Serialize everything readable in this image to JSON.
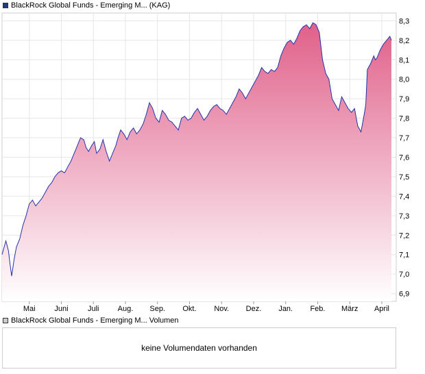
{
  "price_legend": {
    "label": "BlackRock Global Funds - Emerging M... (KAG)",
    "color": "#1f3b8c"
  },
  "volume_legend": {
    "label": "BlackRock Global Funds - Emerging M... Volumen",
    "color": "#cccccc"
  },
  "volume_message": "keine Volumendaten vorhanden",
  "colors": {
    "line": "#2233aa",
    "fill_top": "#e0608a",
    "fill_bottom": "#ffffff",
    "grid": "#cccccc"
  },
  "chart_data": {
    "type": "area",
    "title": "",
    "xlabel": "",
    "ylabel": "",
    "ylim": [
      6.86,
      8.34
    ],
    "yticks": [
      6.9,
      7.0,
      7.1,
      7.2,
      7.3,
      7.4,
      7.5,
      7.6,
      7.7,
      7.8,
      7.9,
      8.0,
      8.1,
      8.2,
      8.3
    ],
    "ytick_labels": [
      "6,9",
      "7,0",
      "7,1",
      "7,2",
      "7,3",
      "7,4",
      "7,5",
      "7,6",
      "7,7",
      "7,8",
      "7,9",
      "8,0",
      "8,1",
      "8,2",
      "8,3"
    ],
    "x_range": [
      0,
      12.3
    ],
    "month_ticks": [
      {
        "label": "Mai",
        "x": 0.85
      },
      {
        "label": "Juni",
        "x": 1.85
      },
      {
        "label": "Juli",
        "x": 2.85
      },
      {
        "label": "Aug.",
        "x": 3.85
      },
      {
        "label": "Sep.",
        "x": 4.85
      },
      {
        "label": "Okt.",
        "x": 5.85
      },
      {
        "label": "Nov.",
        "x": 6.85
      },
      {
        "label": "Dez.",
        "x": 7.85
      },
      {
        "label": "Jan.",
        "x": 8.85
      },
      {
        "label": "Feb.",
        "x": 9.85
      },
      {
        "label": "März",
        "x": 10.85
      },
      {
        "label": "April",
        "x": 11.85
      }
    ],
    "grid": true,
    "series": [
      {
        "x": [
          0.0,
          0.05,
          0.12,
          0.2,
          0.25,
          0.3,
          0.38,
          0.45,
          0.55,
          0.65,
          0.75,
          0.85,
          0.95,
          1.05,
          1.15,
          1.25,
          1.35,
          1.45,
          1.55,
          1.65,
          1.75,
          1.85,
          1.95,
          2.05,
          2.15,
          2.25,
          2.35,
          2.45,
          2.55,
          2.62,
          2.7,
          2.8,
          2.88,
          2.95,
          3.05,
          3.15,
          3.25,
          3.35,
          3.45,
          3.55,
          3.62,
          3.7,
          3.8,
          3.9,
          4.0,
          4.1,
          4.2,
          4.3,
          4.4,
          4.5,
          4.6,
          4.7,
          4.8,
          4.9,
          5.0,
          5.1,
          5.2,
          5.3,
          5.4,
          5.5,
          5.6,
          5.7,
          5.8,
          5.9,
          6.0,
          6.1,
          6.2,
          6.3,
          6.4,
          6.5,
          6.6,
          6.7,
          6.8,
          6.9,
          7.0,
          7.1,
          7.2,
          7.3,
          7.4,
          7.5,
          7.6,
          7.7,
          7.8,
          7.9,
          8.0,
          8.1,
          8.2,
          8.3,
          8.4,
          8.5,
          8.6,
          8.7,
          8.8,
          8.9,
          9.0,
          9.1,
          9.2,
          9.3,
          9.4,
          9.5,
          9.6,
          9.7,
          9.8,
          9.9,
          10.0,
          10.1,
          10.2,
          10.3,
          10.4,
          10.5,
          10.6,
          10.7,
          10.8,
          10.9,
          11.0,
          11.1,
          11.2,
          11.3,
          11.35,
          11.4,
          11.5,
          11.6,
          11.65,
          11.7,
          11.8,
          11.9,
          12.0,
          12.1,
          12.15
        ],
        "values": [
          7.1,
          7.13,
          7.17,
          7.12,
          7.05,
          6.99,
          7.08,
          7.14,
          7.18,
          7.25,
          7.3,
          7.36,
          7.38,
          7.35,
          7.37,
          7.39,
          7.42,
          7.45,
          7.47,
          7.5,
          7.52,
          7.53,
          7.52,
          7.55,
          7.58,
          7.62,
          7.66,
          7.7,
          7.69,
          7.65,
          7.63,
          7.66,
          7.68,
          7.62,
          7.64,
          7.69,
          7.63,
          7.58,
          7.62,
          7.66,
          7.7,
          7.74,
          7.72,
          7.69,
          7.73,
          7.75,
          7.72,
          7.74,
          7.77,
          7.82,
          7.88,
          7.85,
          7.8,
          7.78,
          7.84,
          7.82,
          7.79,
          7.78,
          7.76,
          7.74,
          7.8,
          7.81,
          7.79,
          7.8,
          7.83,
          7.85,
          7.82,
          7.79,
          7.81,
          7.84,
          7.86,
          7.87,
          7.85,
          7.84,
          7.82,
          7.85,
          7.88,
          7.91,
          7.95,
          7.93,
          7.9,
          7.93,
          7.96,
          7.99,
          8.02,
          8.06,
          8.04,
          8.03,
          8.05,
          8.04,
          8.06,
          8.12,
          8.16,
          8.19,
          8.2,
          8.18,
          8.21,
          8.25,
          8.27,
          8.28,
          8.26,
          8.29,
          8.28,
          8.24,
          8.1,
          8.03,
          8.0,
          7.9,
          7.87,
          7.84,
          7.91,
          7.88,
          7.85,
          7.83,
          7.85,
          7.76,
          7.73,
          7.82,
          7.87,
          8.05,
          8.08,
          8.12,
          8.1,
          8.11,
          8.15,
          8.18,
          8.2,
          8.22,
          8.2
        ]
      }
    ]
  }
}
